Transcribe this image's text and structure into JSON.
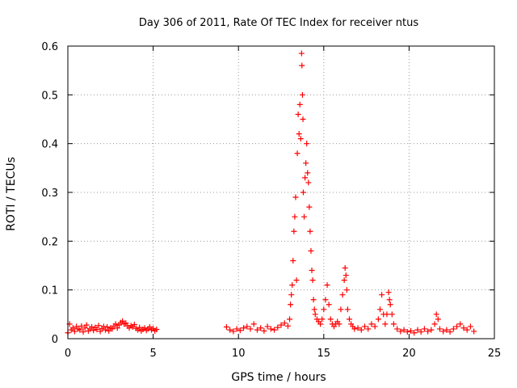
{
  "chart_data": {
    "type": "scatter",
    "title": "Day 306 of 2011, Rate Of TEC Index for receiver ntus",
    "xlabel": "GPS time / hours",
    "ylabel": "ROTI / TECUs",
    "xlim": [
      0,
      25
    ],
    "ylim": [
      0,
      0.6
    ],
    "x_ticks": [
      "0",
      "5",
      "10",
      "15",
      "20",
      "25"
    ],
    "y_ticks": [
      "0",
      "0.1",
      "0.2",
      "0.3",
      "0.4",
      "0.5",
      "0.6"
    ],
    "x_tick_values": [
      0,
      5,
      10,
      15,
      20,
      25
    ],
    "y_tick_values": [
      0,
      0.1,
      0.2,
      0.3,
      0.4,
      0.5,
      0.6
    ],
    "grid": true,
    "marker": "+",
    "color": "#ff0000",
    "series": [
      {
        "points": [
          [
            0.0,
            0.012
          ],
          [
            0.1,
            0.03
          ],
          [
            0.2,
            0.018
          ],
          [
            0.3,
            0.022
          ],
          [
            0.4,
            0.015
          ],
          [
            0.5,
            0.025
          ],
          [
            0.6,
            0.02
          ],
          [
            0.7,
            0.018
          ],
          [
            0.8,
            0.026
          ],
          [
            0.9,
            0.014
          ],
          [
            1.0,
            0.022
          ],
          [
            1.1,
            0.028
          ],
          [
            1.2,
            0.016
          ],
          [
            1.3,
            0.02
          ],
          [
            1.4,
            0.024
          ],
          [
            1.5,
            0.017
          ],
          [
            1.6,
            0.023
          ],
          [
            1.7,
            0.019
          ],
          [
            1.8,
            0.027
          ],
          [
            1.9,
            0.015
          ],
          [
            2.0,
            0.021
          ],
          [
            2.1,
            0.025
          ],
          [
            2.2,
            0.018
          ],
          [
            2.3,
            0.024
          ],
          [
            2.4,
            0.016
          ],
          [
            2.5,
            0.022
          ],
          [
            2.6,
            0.02
          ],
          [
            2.7,
            0.026
          ],
          [
            2.8,
            0.03
          ],
          [
            2.9,
            0.022
          ],
          [
            3.0,
            0.028
          ],
          [
            3.1,
            0.033
          ],
          [
            3.2,
            0.036
          ],
          [
            3.3,
            0.03
          ],
          [
            3.4,
            0.032
          ],
          [
            3.5,
            0.026
          ],
          [
            3.6,
            0.022
          ],
          [
            3.7,
            0.027
          ],
          [
            3.8,
            0.024
          ],
          [
            3.9,
            0.029
          ],
          [
            4.0,
            0.021
          ],
          [
            4.1,
            0.018
          ],
          [
            4.2,
            0.023
          ],
          [
            4.3,
            0.016
          ],
          [
            4.4,
            0.019
          ],
          [
            4.5,
            0.022
          ],
          [
            4.6,
            0.017
          ],
          [
            4.7,
            0.02
          ],
          [
            4.8,
            0.024
          ],
          [
            4.9,
            0.018
          ],
          [
            5.0,
            0.021
          ],
          [
            5.1,
            0.016
          ],
          [
            5.2,
            0.019
          ],
          [
            9.3,
            0.024
          ],
          [
            9.5,
            0.018
          ],
          [
            9.7,
            0.015
          ],
          [
            9.9,
            0.02
          ],
          [
            10.1,
            0.017
          ],
          [
            10.3,
            0.022
          ],
          [
            10.5,
            0.025
          ],
          [
            10.7,
            0.02
          ],
          [
            10.9,
            0.03
          ],
          [
            11.1,
            0.018
          ],
          [
            11.3,
            0.022
          ],
          [
            11.5,
            0.016
          ],
          [
            11.7,
            0.025
          ],
          [
            11.9,
            0.02
          ],
          [
            12.1,
            0.018
          ],
          [
            12.3,
            0.023
          ],
          [
            12.5,
            0.028
          ],
          [
            12.7,
            0.032
          ],
          [
            12.9,
            0.026
          ],
          [
            13.0,
            0.04
          ],
          [
            13.05,
            0.07
          ],
          [
            13.1,
            0.09
          ],
          [
            13.15,
            0.11
          ],
          [
            13.2,
            0.16
          ],
          [
            13.25,
            0.22
          ],
          [
            13.3,
            0.25
          ],
          [
            13.35,
            0.29
          ],
          [
            13.4,
            0.12
          ],
          [
            13.45,
            0.38
          ],
          [
            13.5,
            0.46
          ],
          [
            13.55,
            0.42
          ],
          [
            13.6,
            0.48
          ],
          [
            13.65,
            0.41
          ],
          [
            13.7,
            0.585
          ],
          [
            13.72,
            0.56
          ],
          [
            13.75,
            0.5
          ],
          [
            13.78,
            0.45
          ],
          [
            13.8,
            0.3
          ],
          [
            13.85,
            0.25
          ],
          [
            13.9,
            0.33
          ],
          [
            13.95,
            0.36
          ],
          [
            14.0,
            0.4
          ],
          [
            14.05,
            0.34
          ],
          [
            14.1,
            0.32
          ],
          [
            14.15,
            0.27
          ],
          [
            14.2,
            0.22
          ],
          [
            14.25,
            0.18
          ],
          [
            14.3,
            0.14
          ],
          [
            14.35,
            0.12
          ],
          [
            14.4,
            0.08
          ],
          [
            14.45,
            0.06
          ],
          [
            14.5,
            0.05
          ],
          [
            14.6,
            0.04
          ],
          [
            14.7,
            0.035
          ],
          [
            14.8,
            0.03
          ],
          [
            14.9,
            0.04
          ],
          [
            15.0,
            0.06
          ],
          [
            15.1,
            0.08
          ],
          [
            15.2,
            0.11
          ],
          [
            15.3,
            0.07
          ],
          [
            15.4,
            0.04
          ],
          [
            15.5,
            0.03
          ],
          [
            15.6,
            0.025
          ],
          [
            15.7,
            0.03
          ],
          [
            15.8,
            0.035
          ],
          [
            15.9,
            0.03
          ],
          [
            16.0,
            0.06
          ],
          [
            16.1,
            0.09
          ],
          [
            16.2,
            0.12
          ],
          [
            16.25,
            0.145
          ],
          [
            16.3,
            0.13
          ],
          [
            16.35,
            0.1
          ],
          [
            16.4,
            0.06
          ],
          [
            16.5,
            0.04
          ],
          [
            16.6,
            0.03
          ],
          [
            16.7,
            0.025
          ],
          [
            16.8,
            0.02
          ],
          [
            17.0,
            0.022
          ],
          [
            17.2,
            0.018
          ],
          [
            17.4,
            0.025
          ],
          [
            17.6,
            0.02
          ],
          [
            17.8,
            0.03
          ],
          [
            18.0,
            0.025
          ],
          [
            18.2,
            0.04
          ],
          [
            18.3,
            0.06
          ],
          [
            18.4,
            0.09
          ],
          [
            18.5,
            0.05
          ],
          [
            18.6,
            0.03
          ],
          [
            18.7,
            0.05
          ],
          [
            18.8,
            0.095
          ],
          [
            18.85,
            0.08
          ],
          [
            18.9,
            0.07
          ],
          [
            19.0,
            0.05
          ],
          [
            19.1,
            0.03
          ],
          [
            19.3,
            0.02
          ],
          [
            19.5,
            0.015
          ],
          [
            19.7,
            0.018
          ],
          [
            19.9,
            0.014
          ],
          [
            20.1,
            0.016
          ],
          [
            20.3,
            0.012
          ],
          [
            20.5,
            0.018
          ],
          [
            20.7,
            0.014
          ],
          [
            20.9,
            0.02
          ],
          [
            21.1,
            0.015
          ],
          [
            21.3,
            0.018
          ],
          [
            21.5,
            0.03
          ],
          [
            21.6,
            0.05
          ],
          [
            21.7,
            0.04
          ],
          [
            21.8,
            0.02
          ],
          [
            22.0,
            0.015
          ],
          [
            22.2,
            0.018
          ],
          [
            22.4,
            0.014
          ],
          [
            22.6,
            0.02
          ],
          [
            22.8,
            0.025
          ],
          [
            23.0,
            0.03
          ],
          [
            23.2,
            0.022
          ],
          [
            23.4,
            0.018
          ],
          [
            23.6,
            0.025
          ],
          [
            23.8,
            0.015
          ]
        ]
      }
    ]
  }
}
